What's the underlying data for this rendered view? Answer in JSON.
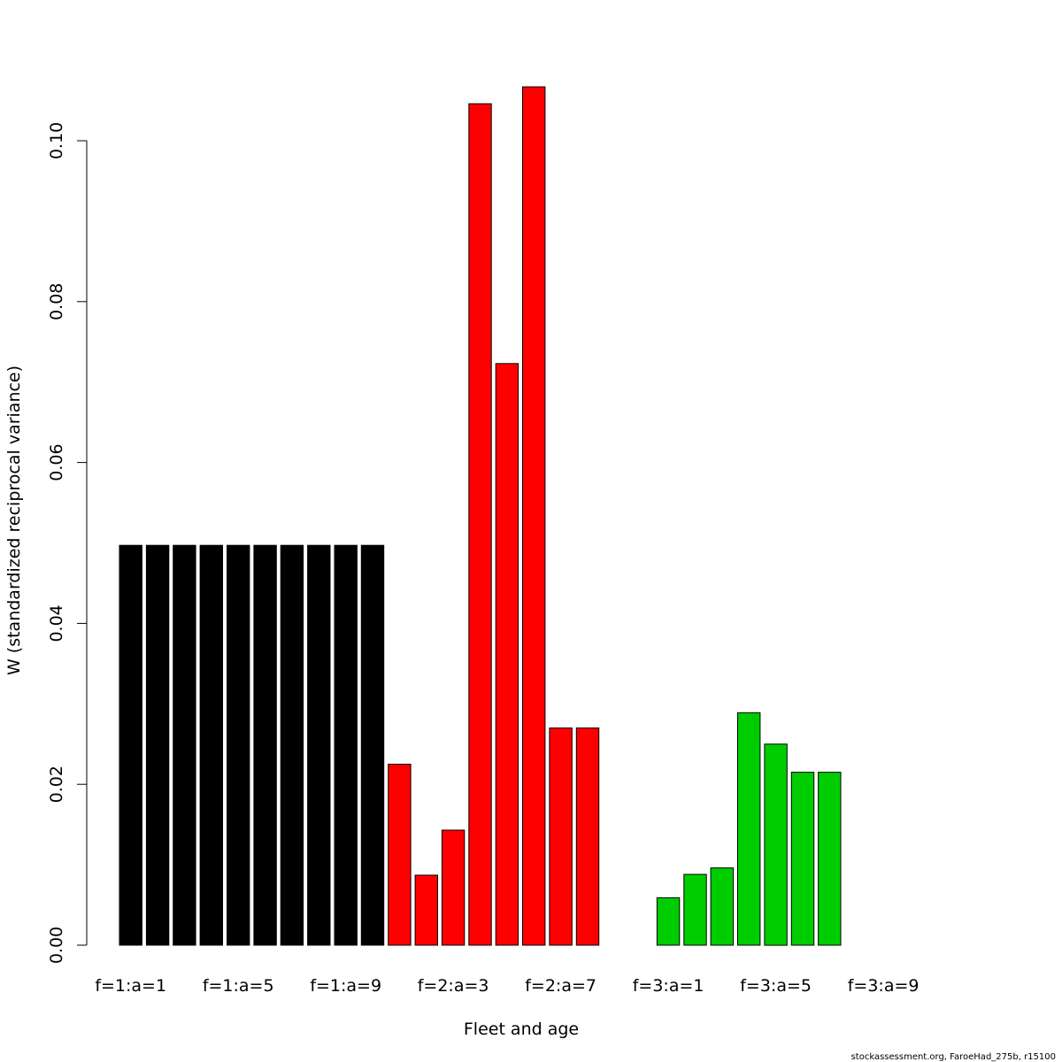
{
  "chart_data": {
    "type": "bar",
    "title": "",
    "xlabel": "Fleet and age",
    "ylabel": "W (standardized reciprocal variance)",
    "ylim": [
      0,
      0.1
    ],
    "yticks": [
      0.0,
      0.02,
      0.04,
      0.06,
      0.08,
      0.1
    ],
    "ytick_labels": [
      "0.00",
      "0.02",
      "0.04",
      "0.06",
      "0.08",
      "0.10"
    ],
    "categories": [
      "f=1:a=1",
      "f=1:a=2",
      "f=1:a=3",
      "f=1:a=4",
      "f=1:a=5",
      "f=1:a=6",
      "f=1:a=7",
      "f=1:a=8",
      "f=1:a=9",
      "f=1:a=10",
      "f=2:a=1",
      "f=2:a=2",
      "f=2:a=3",
      "f=2:a=4",
      "f=2:a=5",
      "f=2:a=6",
      "f=2:a=7",
      "f=2:a=8",
      "f=2:a=9",
      "f=2:a=10",
      "f=3:a=1",
      "f=3:a=2",
      "f=3:a=3",
      "f=3:a=4",
      "f=3:a=5",
      "f=3:a=6",
      "f=3:a=7",
      "f=3:a=8",
      "f=3:a=9",
      "f=3:a=10"
    ],
    "visible_tick_labels": [
      "f=1:a=1",
      "f=1:a=5",
      "f=1:a=9",
      "f=2:a=3",
      "f=2:a=7",
      "f=3:a=1",
      "f=3:a=5",
      "f=3:a=9"
    ],
    "values": [
      0.0497,
      0.0497,
      0.0497,
      0.0497,
      0.0497,
      0.0497,
      0.0497,
      0.0497,
      0.0497,
      0.0497,
      0.0225,
      0.0087,
      0.0143,
      0.1046,
      0.0723,
      0.1067,
      0.027,
      0.027,
      0,
      0,
      0.0059,
      0.0088,
      0.0096,
      0.0289,
      0.025,
      0.0215,
      0.0215,
      0,
      0,
      0
    ],
    "bar_colors": [
      "#000000",
      "#000000",
      "#000000",
      "#000000",
      "#000000",
      "#000000",
      "#000000",
      "#000000",
      "#000000",
      "#000000",
      "#ff0000",
      "#ff0000",
      "#ff0000",
      "#ff0000",
      "#ff0000",
      "#ff0000",
      "#ff0000",
      "#ff0000",
      "#ff0000",
      "#ff0000",
      "#00cd00",
      "#00cd00",
      "#00cd00",
      "#00cd00",
      "#00cd00",
      "#00cd00",
      "#00cd00",
      "#00cd00",
      "#00cd00",
      "#00cd00"
    ],
    "grid": false,
    "legend": "none"
  },
  "credit": "stockassessment.org, FaroeHad_275b, r15100"
}
